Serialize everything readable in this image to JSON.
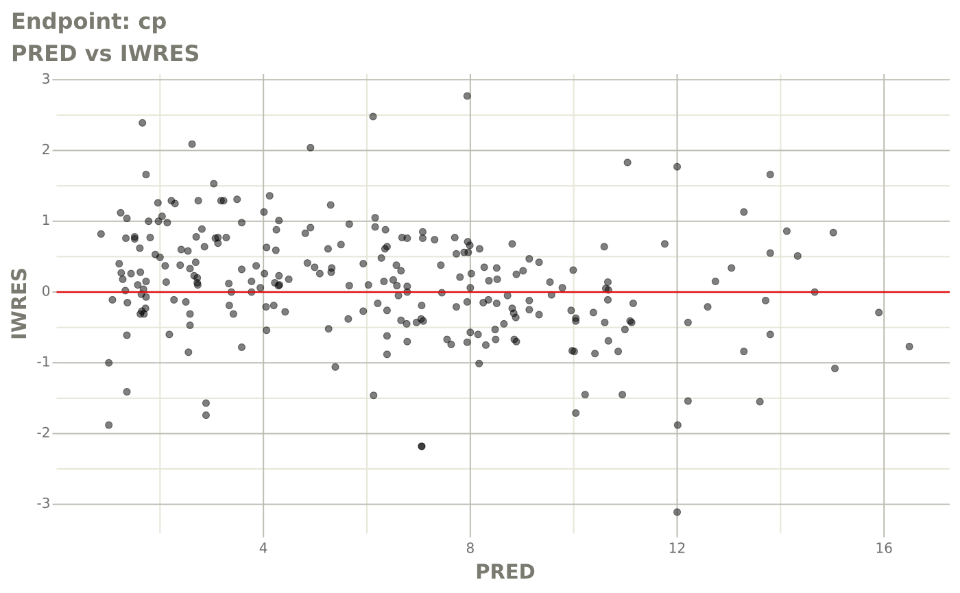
{
  "chart_data": {
    "type": "scatter",
    "title": "Endpoint:  cp",
    "subtitle": "PRED vs IWRES",
    "x_label": "PRED",
    "y_label": "IWRES",
    "xlim": [
      0,
      17.27
    ],
    "ylim": [
      -3.41,
      3.08
    ],
    "xticks": [
      4,
      8,
      12,
      16
    ],
    "yticks": [
      -3,
      -2,
      -1,
      0,
      1,
      2,
      3
    ],
    "x_minor_ticks": [
      2,
      6,
      10,
      14
    ],
    "y_minor_ticks": [
      -2.5,
      -1.5,
      -0.5,
      0.5,
      1.5,
      2.5
    ],
    "grid": true,
    "color": "#000000",
    "opacity": 0.5,
    "hline": 0,
    "hline_color": "#e01010",
    "x": [
      0.86,
      1.01,
      1.01,
      1.08,
      1.21,
      1.24,
      1.25,
      1.28,
      1.33,
      1.34,
      1.36,
      1.36,
      1.36,
      1.37,
      1.44,
      1.51,
      1.51,
      1.57,
      1.61,
      1.62,
      1.62,
      1.64,
      1.65,
      1.66,
      1.68,
      1.69,
      1.72,
      1.73,
      1.73,
      1.73,
      1.78,
      1.81,
      1.91,
      1.96,
      1.97,
      2.0,
      2.04,
      2.1,
      2.12,
      2.14,
      2.18,
      2.22,
      2.27,
      2.29,
      2.39,
      2.41,
      2.5,
      2.54,
      2.55,
      2.58,
      2.58,
      2.58,
      2.62,
      2.66,
      2.69,
      2.7,
      2.72,
      2.72,
      2.73,
      2.74,
      2.81,
      2.86,
      2.89,
      2.89,
      3.04,
      3.07,
      3.12,
      3.12,
      3.18,
      3.23,
      3.28,
      3.33,
      3.34,
      3.38,
      3.42,
      3.49,
      3.58,
      3.58,
      3.58,
      3.77,
      3.77,
      3.86,
      3.94,
      4.01,
      4.02,
      4.05,
      4.06,
      4.06,
      4.12,
      4.2,
      4.22,
      4.24,
      4.25,
      4.29,
      4.3,
      4.3,
      4.31,
      4.42,
      4.49,
      4.81,
      4.85,
      4.91,
      4.91,
      4.99,
      5.09,
      5.25,
      5.26,
      5.3,
      5.31,
      5.32,
      5.39,
      5.5,
      5.64,
      5.66,
      5.66,
      5.93,
      5.93,
      6.03,
      6.12,
      6.13,
      6.16,
      6.16,
      6.21,
      6.28,
      6.33,
      6.35,
      6.36,
      6.39,
      6.39,
      6.39,
      6.39,
      6.51,
      6.57,
      6.58,
      6.61,
      6.66,
      6.66,
      6.68,
      6.77,
      6.78,
      6.78,
      6.78,
      6.78,
      6.96,
      7.05,
      7.06,
      7.08,
      7.08,
      7.06,
      7.06,
      7.09,
      7.31,
      7.43,
      7.45,
      7.55,
      7.63,
      7.7,
      7.73,
      7.73,
      7.8,
      7.88,
      7.94,
      7.94,
      7.94,
      7.95,
      7.96,
      7.99,
      8.0,
      8.0,
      8.02,
      8.15,
      8.17,
      8.18,
      8.25,
      8.27,
      8.3,
      8.35,
      8.36,
      8.48,
      8.49,
      8.51,
      8.51,
      8.52,
      8.65,
      8.72,
      8.81,
      8.81,
      8.84,
      8.85,
      8.88,
      8.89,
      8.89,
      9.02,
      9.14,
      9.14,
      9.14,
      9.33,
      9.33,
      9.54,
      9.57,
      9.78,
      9.95,
      9.97,
      9.99,
      10.01,
      10.04,
      10.04,
      10.04,
      10.22,
      10.38,
      10.41,
      10.59,
      10.6,
      10.62,
      10.66,
      10.66,
      10.67,
      10.67,
      10.86,
      10.94,
      10.99,
      11.04,
      11.09,
      11.12,
      11.15,
      11.76,
      12.0,
      12.01,
      12.0,
      12.21,
      12.21,
      12.59,
      12.74,
      13.05,
      13.29,
      13.29,
      13.6,
      13.71,
      13.8,
      13.8,
      13.8,
      14.12,
      14.33,
      14.66,
      15.02,
      15.05,
      15.9,
      16.49
    ],
    "values": [
      0.82,
      -1.0,
      -1.88,
      -0.11,
      0.4,
      1.12,
      0.27,
      0.18,
      0.02,
      0.76,
      1.04,
      -0.61,
      -1.41,
      -0.15,
      0.26,
      0.75,
      0.78,
      0.1,
      0.62,
      0.28,
      -0.31,
      -0.03,
      -0.27,
      2.39,
      0.04,
      -0.31,
      -0.23,
      0.15,
      -0.07,
      1.66,
      1.0,
      0.77,
      0.53,
      1.26,
      1.0,
      0.49,
      1.07,
      0.37,
      0.14,
      0.98,
      -0.6,
      1.29,
      -0.11,
      1.25,
      0.38,
      0.6,
      -0.14,
      0.58,
      -0.85,
      -0.47,
      -0.31,
      0.33,
      2.09,
      0.23,
      0.42,
      0.78,
      0.2,
      0.13,
      0.1,
      1.29,
      0.89,
      0.64,
      -1.57,
      -1.74,
      1.53,
      0.76,
      0.77,
      0.69,
      1.29,
      1.29,
      0.77,
      0.12,
      -0.19,
      0.0,
      -0.31,
      1.31,
      0.98,
      0.32,
      -0.78,
      0.15,
      0.0,
      0.37,
      0.06,
      1.13,
      0.26,
      -0.21,
      0.63,
      -0.54,
      1.36,
      -0.19,
      0.13,
      0.59,
      0.88,
      0.09,
      0.23,
      1.01,
      0.1,
      -0.28,
      0.18,
      0.83,
      0.41,
      2.04,
      0.91,
      0.35,
      0.26,
      0.61,
      -0.52,
      1.23,
      0.28,
      0.34,
      -1.06,
      0.67,
      -0.38,
      0.09,
      0.96,
      -0.27,
      0.4,
      0.1,
      2.48,
      -1.46,
      1.05,
      0.92,
      -0.16,
      0.48,
      0.15,
      0.61,
      0.88,
      0.64,
      -0.26,
      -0.62,
      -0.88,
      0.17,
      0.38,
      0.09,
      -0.05,
      0.3,
      -0.4,
      0.77,
      -0.45,
      0.76,
      0.08,
      0.0,
      -0.7,
      -0.43,
      -0.38,
      -0.19,
      0.85,
      0.76,
      -2.18,
      -2.18,
      -0.41,
      0.74,
      0.38,
      -0.01,
      -0.67,
      -0.74,
      0.77,
      -0.21,
      0.54,
      0.21,
      0.56,
      -0.71,
      -0.14,
      2.77,
      0.71,
      0.56,
      0.66,
      -0.57,
      0.06,
      0.26,
      -0.6,
      -1.01,
      0.61,
      -0.15,
      0.35,
      -0.75,
      -0.11,
      0.16,
      -0.53,
      -0.67,
      0.34,
      -0.16,
      0.18,
      -0.45,
      -0.05,
      0.68,
      -0.23,
      -0.3,
      -0.67,
      -0.36,
      -0.7,
      0.25,
      0.3,
      -0.12,
      0.47,
      -0.25,
      0.42,
      -0.32,
      0.14,
      -0.04,
      0.06,
      -0.26,
      -0.83,
      0.31,
      -0.84,
      -1.71,
      -0.37,
      -0.41,
      -1.45,
      -0.29,
      -0.87,
      0.64,
      -0.43,
      0.05,
      0.14,
      -0.11,
      0.03,
      -0.69,
      -0.84,
      -1.45,
      -0.53,
      1.83,
      -0.41,
      -0.43,
      -0.16,
      0.68,
      1.77,
      -1.88,
      -3.11,
      -0.43,
      -1.54,
      -0.21,
      0.15,
      0.34,
      1.13,
      -0.84,
      -1.55,
      -0.12,
      1.66,
      0.55,
      -0.6,
      0.86,
      0.51,
      0.0,
      0.84,
      -1.08,
      -0.29,
      -0.77
    ]
  }
}
